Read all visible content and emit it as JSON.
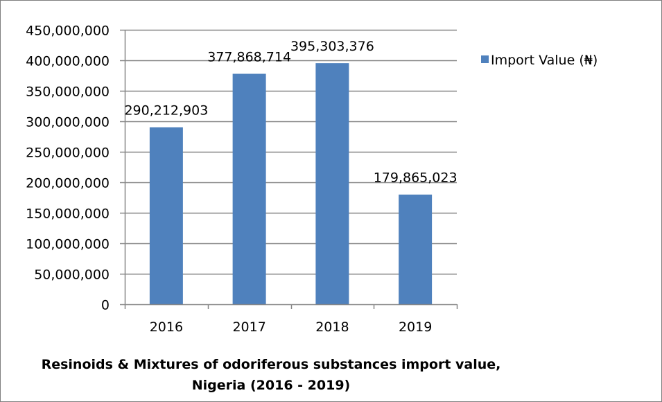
{
  "chart_data": {
    "type": "bar",
    "title": "Resinoids & Mixtures of odoriferous substances import value,",
    "subtitle": "Nigeria (2016 - 2019)",
    "categories": [
      "2016",
      "2017",
      "2018",
      "2019"
    ],
    "series": [
      {
        "name": "Import Value (₦)",
        "values": [
          290212903,
          377868714,
          395303376,
          179865023
        ],
        "data_labels": [
          "290,212,903",
          "377,868,714",
          "395,303,376",
          "179,865,023"
        ]
      }
    ],
    "ylim": [
      0,
      450000000
    ],
    "yticks": [
      0,
      50000000,
      100000000,
      150000000,
      200000000,
      250000000,
      300000000,
      350000000,
      400000000,
      450000000
    ],
    "ytick_labels": [
      "0",
      "50,000,000",
      "100,000,000",
      "150,000,000",
      "200,000,000",
      "250,000,000",
      "300,000,000",
      "350,000,000",
      "400,000,000",
      "450,000,000"
    ],
    "xlabel": "",
    "ylabel": "",
    "grid": true,
    "legend": "right",
    "colors": {
      "bar": "#4f81bd",
      "grid": "#868686",
      "axis": "#868686"
    }
  }
}
